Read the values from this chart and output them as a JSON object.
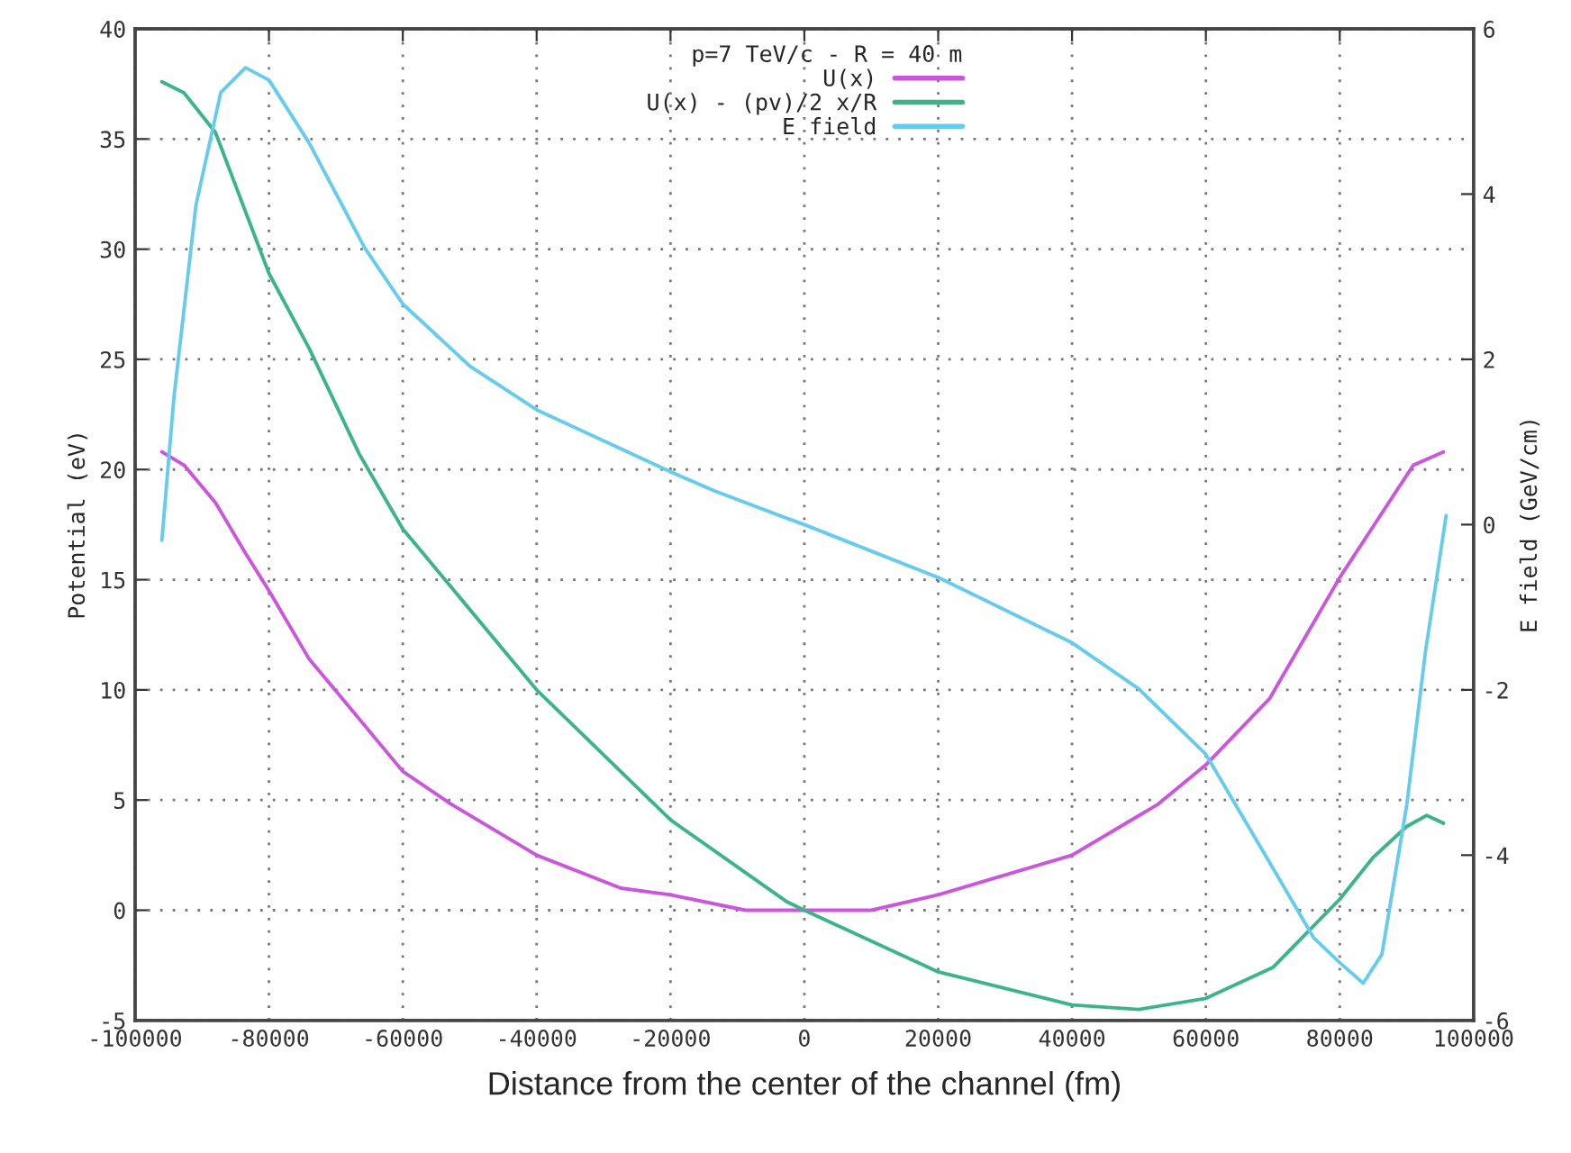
{
  "chart_data": {
    "type": "line",
    "legend_title": "p=7 TeV/c - R = 40 m",
    "xlabel": "Distance from the center of the channel (fm)",
    "ylabel": "Potential (eV)",
    "y2label": "E field (GeV/cm)",
    "xlim": [
      -100000,
      100000
    ],
    "xticks": [
      -100000,
      -80000,
      -60000,
      -40000,
      -20000,
      0,
      20000,
      40000,
      60000,
      80000,
      100000
    ],
    "ylim": [
      -5,
      40
    ],
    "yticks": [
      -5,
      0,
      5,
      10,
      15,
      20,
      25,
      30,
      35,
      40
    ],
    "y2lim": [
      -6,
      6
    ],
    "y2ticks": [
      -6,
      -4,
      -2,
      0,
      2,
      4,
      6
    ],
    "grid": true,
    "legend": "top",
    "marker": "none",
    "line_style": "solid",
    "series": [
      {
        "name": "U(x)",
        "color": "#cc55dd",
        "x": [
          -96000,
          -92700,
          -88000,
          -83500,
          -80000,
          -74000,
          -69300,
          -60000,
          -52700,
          -40000,
          -27400,
          -20000,
          -8800,
          0,
          10000,
          20000,
          40000,
          52800,
          60000,
          69500,
          80000,
          91000,
          95500
        ],
        "values": [
          20.8,
          20.2,
          18.5,
          16.2,
          14.5,
          11.4,
          9.7,
          6.3,
          4.8,
          2.5,
          1.0,
          0.7,
          0,
          0,
          0,
          0.7,
          2.5,
          4.8,
          6.6,
          9.6,
          15.1,
          20.2,
          20.8
        ]
      },
      {
        "name": "U(x) - (pv)/2 x/R",
        "color": "#3cb48a",
        "x": [
          -96000,
          -92700,
          -88000,
          -80000,
          -74000,
          -66500,
          -60000,
          -40000,
          -20000,
          -2700,
          0,
          20000,
          40000,
          50000,
          60000,
          70000,
          80000,
          85000,
          90000,
          93000,
          95500
        ],
        "values": [
          37.6,
          37.1,
          35.3,
          28.9,
          25.5,
          20.7,
          17.3,
          10.0,
          4.1,
          0.4,
          0,
          -2.8,
          -4.3,
          -4.5,
          -4.0,
          -2.6,
          0.5,
          2.4,
          3.8,
          4.3,
          3.95
        ]
      },
      {
        "name": "E field",
        "color": "#66ccee",
        "axis": "y2",
        "x": [
          -96000,
          -94200,
          -90900,
          -87200,
          -83500,
          -80000,
          -74000,
          -65700,
          -60000,
          -50000,
          -40000,
          -20000,
          -13500,
          -2700,
          0,
          20000,
          40000,
          50000,
          60000,
          69600,
          76100,
          80000,
          83500,
          86300,
          90000,
          92800,
          95900
        ],
        "values": [
          -0.19,
          1.54,
          3.87,
          5.23,
          5.53,
          5.38,
          4.62,
          3.35,
          2.67,
          1.92,
          1.39,
          0.64,
          0.41,
          0.08,
          0,
          -0.64,
          -1.43,
          -1.99,
          -2.78,
          -4.1,
          -5.0,
          -5.3,
          -5.55,
          -5.2,
          -3.4,
          -1.54,
          0.11
        ]
      }
    ]
  }
}
